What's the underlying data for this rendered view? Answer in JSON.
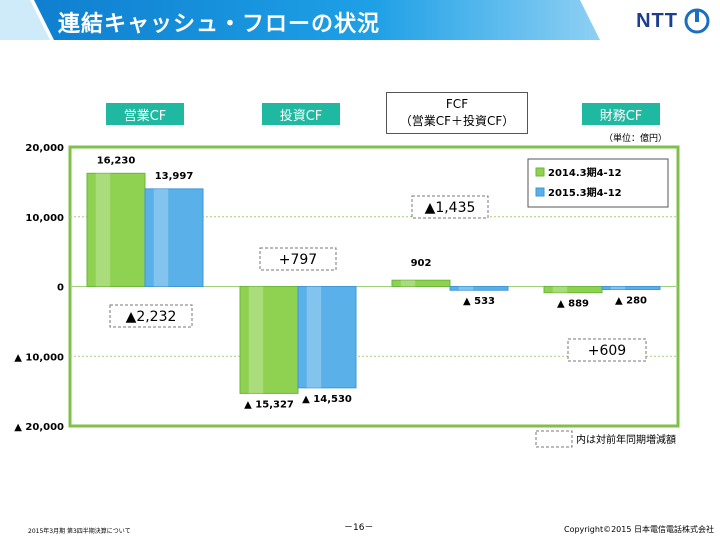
{
  "header": {
    "title": "連結キャッシュ・フローの状況",
    "logo_text": "NTT"
  },
  "categories_labels": {
    "operating": "営業CF",
    "investing": "投資CF",
    "fcf_line1": "FCF",
    "fcf_line2": "（営業CF＋投資CF）",
    "financing": "財務CF"
  },
  "unit": "（単位：億円）",
  "footer": {
    "left": "2015年3月期 第3四半期決算について",
    "page": "－16－",
    "right": "Copyright©2015  日本電信電話株式会社"
  },
  "colors": {
    "header_blue": "#1a8fd6",
    "teal": "#1fb9a1",
    "green": "#8fd150",
    "blue": "#5ab0e8",
    "frame": "#7ec04a"
  },
  "chart_data": {
    "type": "bar",
    "categories": [
      "営業CF",
      "投資CF",
      "FCF",
      "財務CF"
    ],
    "series": [
      {
        "name": "2014.3期4-12",
        "values": [
          16230,
          -15327,
          902,
          -889
        ],
        "labels": [
          "16,230",
          "▲ 15,327",
          "902",
          "▲ 889"
        ]
      },
      {
        "name": "2015.3期4-12",
        "values": [
          13997,
          -14530,
          -533,
          -280
        ],
        "labels": [
          "13,997",
          "▲ 14,530",
          "▲ 533",
          "▲ 280"
        ]
      }
    ],
    "ylim": [
      -20000,
      20000
    ],
    "yticks": [
      {
        "value": 20000,
        "label": "20,000"
      },
      {
        "value": 10000,
        "label": "10,000"
      },
      {
        "value": 0,
        "label": "0"
      },
      {
        "value": -10000,
        "label": "▲ 10,000"
      },
      {
        "value": -20000,
        "label": "▲ 20,000"
      }
    ],
    "changes": [
      "▲2,232",
      "+797",
      "▲1,435",
      "+609"
    ],
    "legend_note": "内は対前年同期増減額",
    "legend_position": "top-right"
  }
}
